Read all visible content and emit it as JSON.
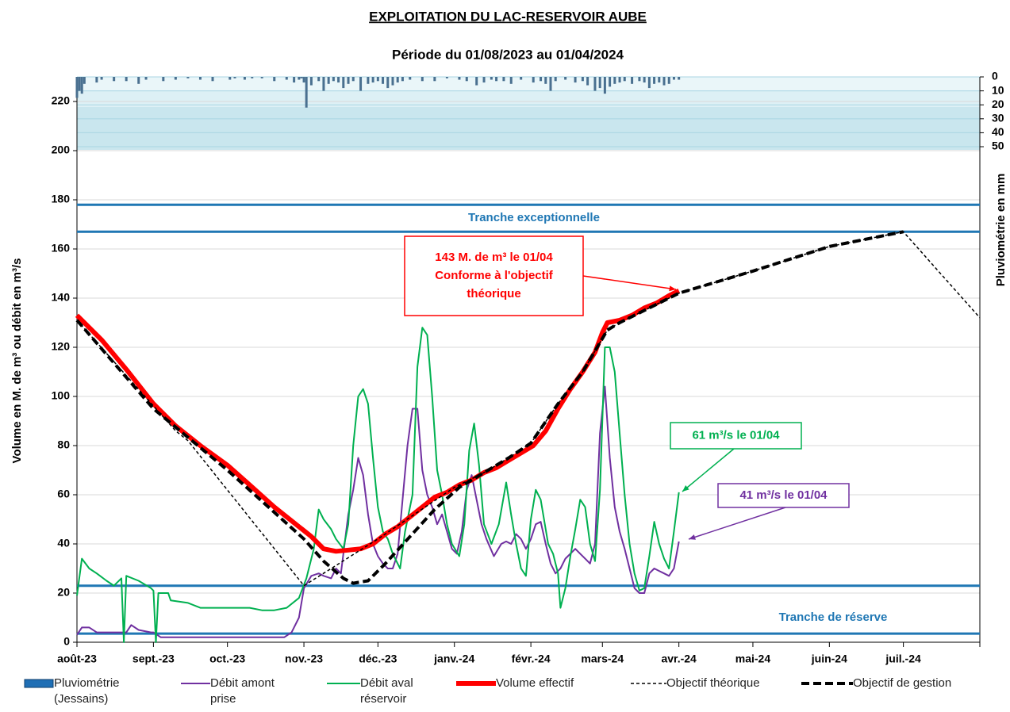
{
  "chart_data": {
    "type": "line",
    "title": "EXPLOITATION  DU  LAC-RESERVOIR  AUBE",
    "subtitle": "Période du 01/08/2023 au 01/04/2024",
    "y_label": "Volume en M. de m³ ou débit en m³/s",
    "y2_label": "Pluviométrie en mm",
    "xlim": [
      0,
      366
    ],
    "xticks": [
      {
        "value": 0,
        "label": "août-23"
      },
      {
        "value": 31,
        "label": "sept.-23"
      },
      {
        "value": 61,
        "label": "oct.-23"
      },
      {
        "value": 92,
        "label": "nov.-23"
      },
      {
        "value": 122,
        "label": "déc.-23"
      },
      {
        "value": 153,
        "label": "janv.-24"
      },
      {
        "value": 184,
        "label": "févr.-24"
      },
      {
        "value": 213,
        "label": "mars-24"
      },
      {
        "value": 244,
        "label": "avr.-24"
      },
      {
        "value": 274,
        "label": "mai-24"
      },
      {
        "value": 305,
        "label": "juin-24"
      },
      {
        "value": 335,
        "label": "juil.-24"
      },
      {
        "value": 366,
        "label": ""
      }
    ],
    "ylim": [
      0,
      230
    ],
    "yticks": [
      0,
      20,
      40,
      60,
      80,
      100,
      120,
      140,
      160,
      180,
      200,
      220
    ],
    "y2lim": [
      405,
      0
    ],
    "y2ticks": [
      0,
      10,
      20,
      30,
      40,
      50
    ],
    "grid": true,
    "bands": [
      {
        "name": "Tranche exceptionnelle",
        "from": 167,
        "to": 178,
        "color": "#1f77b4"
      },
      {
        "name": "Tranche de réserve",
        "from": 3.5,
        "to": 23,
        "color": "#1f77b4"
      }
    ],
    "series": [
      {
        "name": "Pluviométrie (Jessains)",
        "kind": "bar",
        "axis": "y2",
        "color": "#4a7090",
        "x": [
          0,
          1,
          2,
          3,
          8,
          10,
          15,
          20,
          25,
          28,
          35,
          40,
          45,
          50,
          55,
          62,
          64,
          68,
          71,
          75,
          80,
          85,
          88,
          90,
          91,
          92,
          93,
          95,
          98,
          100,
          102,
          104,
          106,
          108,
          110,
          112,
          115,
          118,
          120,
          122,
          124,
          126,
          128,
          130,
          132,
          135,
          140,
          145,
          150,
          155,
          158,
          162,
          165,
          168,
          170,
          173,
          176,
          180,
          185,
          188,
          190,
          192,
          194,
          198,
          202,
          205,
          207,
          210,
          212,
          214,
          216,
          218,
          220,
          222,
          225,
          228,
          230,
          232,
          234,
          236,
          238,
          240,
          242,
          244
        ],
        "values": [
          15,
          10,
          12,
          5,
          4,
          2,
          3,
          3,
          5,
          2,
          3,
          2,
          1,
          2,
          3,
          2,
          1,
          2,
          1,
          1,
          3,
          2,
          4,
          2,
          1,
          4,
          22,
          6,
          3,
          10,
          5,
          3,
          4,
          8,
          5,
          3,
          10,
          5,
          4,
          3,
          5,
          8,
          6,
          4,
          3,
          2,
          3,
          3,
          1,
          2,
          3,
          6,
          4,
          2,
          3,
          3,
          5,
          2,
          4,
          3,
          5,
          10,
          3,
          2,
          4,
          3,
          6,
          10,
          8,
          12,
          7,
          5,
          4,
          3,
          5,
          3,
          4,
          8,
          5,
          4,
          6,
          5,
          2,
          2
        ]
      },
      {
        "name": "Débit amont prise",
        "color": "#7030a0",
        "width": 2,
        "x": [
          0,
          2,
          5,
          8,
          12,
          15,
          18,
          20,
          22,
          25,
          30,
          31,
          34,
          40,
          50,
          60,
          70,
          80,
          84,
          87,
          90,
          92,
          95,
          98,
          100,
          103,
          105,
          107,
          110,
          112,
          114,
          116,
          118,
          120,
          122,
          124,
          126,
          128,
          130,
          132,
          134,
          136,
          138,
          140,
          142,
          144,
          146,
          148,
          150,
          152,
          154,
          156,
          158,
          160,
          162,
          164,
          166,
          169,
          172,
          174,
          176,
          178,
          180,
          182,
          184,
          186,
          188,
          190,
          192,
          194,
          196,
          198,
          200,
          202,
          204,
          206,
          208,
          210,
          212,
          214,
          216,
          218,
          220,
          222,
          224,
          226,
          228,
          230,
          232,
          234,
          236,
          238,
          240,
          242,
          244
        ],
        "values": [
          3,
          6,
          6,
          4,
          4,
          4,
          4,
          4,
          7,
          5,
          4,
          4,
          2,
          2,
          2,
          2,
          2,
          2,
          2,
          4,
          10,
          22,
          27,
          28,
          27,
          26,
          30,
          28,
          52,
          62,
          75,
          68,
          52,
          40,
          35,
          32,
          30,
          30,
          36,
          58,
          80,
          95,
          95,
          70,
          60,
          55,
          48,
          52,
          45,
          38,
          36,
          45,
          62,
          68,
          58,
          48,
          42,
          35,
          40,
          41,
          40,
          44,
          42,
          38,
          42,
          48,
          49,
          40,
          32,
          28,
          30,
          34,
          36,
          38,
          36,
          34,
          32,
          40,
          85,
          104,
          75,
          55,
          45,
          38,
          30,
          22,
          20,
          20,
          28,
          30,
          29,
          28,
          27,
          30,
          41
        ]
      },
      {
        "name": "Débit aval réservoir",
        "color": "#00b050",
        "width": 2,
        "x": [
          0,
          2,
          5,
          8,
          12,
          15,
          18,
          19,
          20,
          25,
          30,
          31,
          32,
          33,
          37,
          38,
          45,
          50,
          60,
          70,
          75,
          80,
          85,
          90,
          93,
          96,
          98,
          100,
          103,
          105,
          108,
          110,
          112,
          114,
          116,
          118,
          120,
          122,
          124,
          126,
          128,
          131,
          133,
          136,
          138,
          140,
          142,
          144,
          146,
          148,
          150,
          152,
          155,
          157,
          159,
          161,
          163,
          165,
          168,
          171,
          174,
          176,
          178,
          180,
          182,
          184,
          186,
          188,
          191,
          193,
          195,
          196,
          198,
          200,
          202,
          204,
          206,
          208,
          210,
          212,
          214,
          216,
          218,
          220,
          222,
          224,
          226,
          228,
          230,
          232,
          234,
          236,
          238,
          240,
          242,
          244
        ],
        "values": [
          19,
          34,
          30,
          28,
          25,
          23,
          26,
          0,
          27,
          25,
          22,
          21,
          0,
          20,
          20,
          17,
          16,
          14,
          14,
          14,
          13,
          13,
          14,
          18,
          26,
          38,
          54,
          50,
          46,
          42,
          38,
          48,
          80,
          100,
          103,
          97,
          75,
          55,
          45,
          42,
          36,
          30,
          45,
          60,
          112,
          128,
          125,
          100,
          70,
          60,
          48,
          40,
          35,
          48,
          78,
          89,
          72,
          48,
          40,
          48,
          65,
          52,
          40,
          30,
          27,
          50,
          62,
          58,
          40,
          36,
          28,
          14,
          22,
          35,
          46,
          58,
          55,
          40,
          33,
          62,
          120,
          120,
          110,
          85,
          60,
          40,
          28,
          21,
          22,
          35,
          49,
          40,
          34,
          30,
          45,
          61
        ]
      },
      {
        "name": "Volume effectif",
        "color": "#ff0000",
        "width": 6,
        "x": [
          0,
          10,
          20,
          31,
          40,
          50,
          61,
          70,
          80,
          90,
          95,
          100,
          105,
          110,
          115,
          120,
          125,
          130,
          135,
          140,
          145,
          150,
          155,
          160,
          165,
          170,
          175,
          180,
          185,
          190,
          195,
          200,
          205,
          210,
          213,
          215,
          220,
          225,
          230,
          235,
          240,
          244
        ],
        "values": [
          133,
          123,
          111,
          97,
          88,
          80,
          72,
          64,
          55,
          47,
          43,
          38,
          37,
          37.5,
          38,
          40,
          44,
          47,
          51,
          55,
          59,
          61,
          64,
          66,
          69,
          71,
          74,
          77,
          80,
          86,
          95,
          103,
          110,
          118,
          126,
          130,
          131,
          133,
          136,
          138,
          141,
          143
        ]
      },
      {
        "name": "Objectif théorique",
        "color": "#000000",
        "width": 1.5,
        "dash": "4,3",
        "x": [
          0,
          40,
          45,
          92,
          122,
          153,
          165,
          175,
          184,
          195,
          205,
          215,
          220,
          244,
          274,
          305,
          335,
          366
        ],
        "values": [
          131,
          86,
          82,
          23,
          42,
          63,
          69,
          75,
          81,
          97,
          110,
          127,
          130,
          142,
          151,
          161,
          167,
          132
        ]
      },
      {
        "name": "Objectif de gestion",
        "color": "#000000",
        "width": 4,
        "dash": "10,5",
        "x": [
          0,
          31,
          61,
          92,
          100,
          108,
          112,
          118,
          125,
          135,
          145,
          155,
          165,
          175,
          184,
          195,
          205,
          215,
          220,
          244,
          274,
          305,
          335
        ],
        "values": [
          131,
          95,
          70,
          42,
          33,
          26,
          24,
          25,
          32,
          43,
          54,
          63,
          69,
          75,
          81,
          97,
          110,
          127,
          130,
          142,
          151,
          161,
          167
        ]
      }
    ],
    "annotations": [
      {
        "lines": [
          "143 M. de m³ le 01/04",
          "Conforme à l'objectif",
          "théorique"
        ],
        "color": "#ff0000"
      },
      {
        "lines": [
          "61 m³/s le 01/04"
        ],
        "color": "#00b050"
      },
      {
        "lines": [
          "41 m³/s le 01/04"
        ],
        "color": "#7030a0"
      }
    ]
  }
}
